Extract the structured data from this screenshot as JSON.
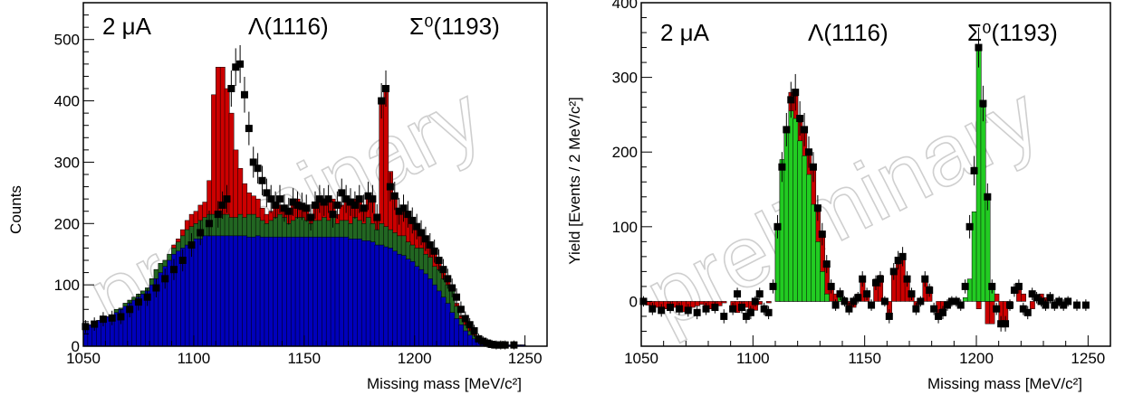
{
  "chart_data": [
    {
      "type": "histogram",
      "xlabel": "Missing mass  [MeV/c²]",
      "ylabel": "Counts",
      "xlim": [
        1050,
        1260
      ],
      "ylim": [
        0,
        560
      ],
      "xticks": [
        1050,
        1100,
        1150,
        1200,
        1250
      ],
      "yticks": [
        0,
        100,
        200,
        300,
        400,
        500
      ],
      "annotations": [
        "2 μA",
        "Λ(1116)",
        "Σ⁰(1193)"
      ],
      "watermark": "preliminary",
      "x": [
        1050,
        1052,
        1054,
        1056,
        1058,
        1060,
        1062,
        1064,
        1066,
        1068,
        1070,
        1072,
        1074,
        1076,
        1078,
        1080,
        1082,
        1084,
        1086,
        1088,
        1090,
        1092,
        1094,
        1096,
        1098,
        1100,
        1102,
        1104,
        1106,
        1108,
        1110,
        1112,
        1114,
        1116,
        1118,
        1120,
        1122,
        1124,
        1126,
        1128,
        1130,
        1132,
        1134,
        1136,
        1138,
        1140,
        1142,
        1144,
        1146,
        1148,
        1150,
        1152,
        1154,
        1156,
        1158,
        1160,
        1162,
        1164,
        1166,
        1168,
        1170,
        1172,
        1174,
        1176,
        1178,
        1180,
        1182,
        1184,
        1186,
        1188,
        1190,
        1192,
        1194,
        1196,
        1198,
        1200,
        1202,
        1204,
        1206,
        1208,
        1210,
        1212,
        1214,
        1216,
        1218,
        1220,
        1222,
        1224,
        1226,
        1228,
        1230,
        1232,
        1234,
        1236,
        1238,
        1240,
        1242,
        1244,
        1246,
        1248
      ],
      "series": [
        {
          "name": "",
          "color": "#cc0000",
          "values": [
            30,
            35,
            38,
            42,
            45,
            48,
            50,
            60,
            62,
            70,
            75,
            80,
            85,
            90,
            95,
            110,
            125,
            135,
            140,
            150,
            165,
            175,
            190,
            205,
            215,
            220,
            230,
            235,
            270,
            410,
            455,
            455,
            420,
            380,
            320,
            290,
            265,
            250,
            245,
            240,
            225,
            215,
            220,
            235,
            230,
            225,
            215,
            230,
            240,
            225,
            220,
            210,
            230,
            245,
            240,
            235,
            240,
            215,
            230,
            235,
            230,
            240,
            235,
            225,
            245,
            240,
            210,
            405,
            420,
            285,
            245,
            220,
            230,
            215,
            200,
            190,
            190,
            180,
            170,
            155,
            140,
            125,
            110,
            100,
            70,
            50,
            40,
            30,
            20,
            10,
            8,
            5,
            3,
            3,
            2,
            2,
            2,
            2,
            2,
            2
          ]
        },
        {
          "name": "",
          "color": "#226622",
          "values": [
            30,
            35,
            38,
            42,
            45,
            48,
            50,
            60,
            62,
            70,
            75,
            80,
            85,
            90,
            95,
            110,
            125,
            135,
            140,
            150,
            160,
            170,
            180,
            190,
            195,
            200,
            205,
            210,
            215,
            215,
            220,
            215,
            215,
            210,
            210,
            215,
            210,
            215,
            215,
            210,
            205,
            200,
            205,
            210,
            215,
            210,
            200,
            205,
            210,
            210,
            205,
            200,
            205,
            205,
            210,
            205,
            210,
            200,
            205,
            205,
            200,
            210,
            205,
            200,
            210,
            200,
            190,
            200,
            195,
            190,
            185,
            180,
            180,
            170,
            165,
            160,
            160,
            150,
            145,
            130,
            125,
            110,
            100,
            90,
            65,
            45,
            35,
            25,
            18,
            8,
            6,
            4,
            3,
            3,
            2,
            2,
            2,
            2,
            2,
            2
          ]
        },
        {
          "name": "",
          "color": "#0000bb",
          "values": [
            30,
            35,
            38,
            42,
            45,
            48,
            50,
            55,
            60,
            65,
            70,
            75,
            80,
            85,
            90,
            100,
            110,
            120,
            130,
            140,
            150,
            155,
            160,
            165,
            170,
            175,
            175,
            180,
            180,
            180,
            180,
            180,
            180,
            180,
            180,
            180,
            180,
            178,
            178,
            180,
            178,
            178,
            178,
            178,
            178,
            178,
            178,
            178,
            178,
            178,
            178,
            178,
            178,
            178,
            178,
            178,
            178,
            178,
            178,
            178,
            175,
            175,
            175,
            172,
            172,
            170,
            165,
            165,
            162,
            160,
            155,
            150,
            148,
            142,
            138,
            130,
            125,
            118,
            110,
            100,
            90,
            80,
            70,
            55,
            45,
            35,
            25,
            18,
            12,
            8,
            5,
            3,
            2,
            2,
            2,
            2,
            2,
            2,
            2,
            2
          ]
        }
      ],
      "data_points": {
        "x": [
          1050,
          1054,
          1058,
          1062,
          1066,
          1070,
          1074,
          1078,
          1082,
          1086,
          1090,
          1094,
          1098,
          1102,
          1106,
          1110,
          1112,
          1114,
          1116,
          1118,
          1120,
          1122,
          1124,
          1126,
          1128,
          1130,
          1132,
          1134,
          1136,
          1138,
          1140,
          1142,
          1144,
          1146,
          1148,
          1150,
          1152,
          1154,
          1156,
          1158,
          1160,
          1162,
          1164,
          1166,
          1168,
          1170,
          1172,
          1174,
          1176,
          1178,
          1180,
          1182,
          1184,
          1186,
          1188,
          1190,
          1192,
          1194,
          1196,
          1198,
          1200,
          1202,
          1204,
          1206,
          1208,
          1210,
          1212,
          1214,
          1216,
          1218,
          1220,
          1222,
          1224,
          1226,
          1228,
          1230,
          1232,
          1234,
          1236,
          1238,
          1240,
          1244
        ],
        "y": [
          32,
          36,
          44,
          46,
          48,
          60,
          72,
          80,
          95,
          110,
          125,
          140,
          165,
          185,
          200,
          215,
          230,
          240,
          420,
          455,
          460,
          410,
          355,
          300,
          290,
          270,
          250,
          240,
          230,
          240,
          225,
          220,
          235,
          230,
          228,
          225,
          210,
          230,
          240,
          235,
          240,
          215,
          230,
          250,
          240,
          235,
          230,
          240,
          225,
          245,
          240,
          210,
          400,
          420,
          260,
          245,
          220,
          225,
          215,
          205,
          195,
          185,
          175,
          165,
          155,
          140,
          125,
          110,
          95,
          80,
          60,
          45,
          35,
          25,
          12,
          8,
          5,
          3,
          2,
          2,
          2,
          2
        ]
      }
    },
    {
      "type": "histogram",
      "xlabel": "Missing mass  [MeV/c²]",
      "ylabel": "Yield  [Events / 2 MeV/c²]",
      "xlim": [
        1050,
        1260
      ],
      "ylim": [
        -60,
        400
      ],
      "xticks": [
        1050,
        1100,
        1150,
        1200,
        1250
      ],
      "yticks": [
        0,
        100,
        200,
        300,
        400
      ],
      "annotations": [
        "2 μA",
        "Λ(1116)",
        "Σ⁰(1193)"
      ],
      "watermark": "preliminary",
      "x": [
        1050,
        1052,
        1054,
        1056,
        1058,
        1060,
        1062,
        1064,
        1066,
        1068,
        1070,
        1072,
        1074,
        1076,
        1078,
        1080,
        1082,
        1084,
        1086,
        1088,
        1090,
        1092,
        1094,
        1096,
        1098,
        1100,
        1102,
        1104,
        1106,
        1108,
        1110,
        1112,
        1114,
        1116,
        1118,
        1120,
        1122,
        1124,
        1126,
        1128,
        1130,
        1132,
        1134,
        1136,
        1138,
        1140,
        1142,
        1144,
        1146,
        1148,
        1150,
        1152,
        1154,
        1156,
        1158,
        1160,
        1162,
        1164,
        1166,
        1168,
        1170,
        1172,
        1174,
        1176,
        1178,
        1180,
        1182,
        1184,
        1186,
        1188,
        1190,
        1192,
        1194,
        1196,
        1198,
        1200,
        1202,
        1204,
        1206,
        1208,
        1210,
        1212,
        1214,
        1216,
        1218,
        1220,
        1222,
        1224,
        1226,
        1228,
        1230,
        1232,
        1234,
        1236,
        1238,
        1240,
        1242,
        1244,
        1246,
        1248
      ],
      "series": [
        {
          "name": "",
          "color": "#cc0000",
          "values": [
            0,
            -5,
            -10,
            -8,
            -12,
            -10,
            -6,
            -8,
            -12,
            -14,
            -10,
            -8,
            -6,
            -4,
            -8,
            -10,
            -4,
            -6,
            -2,
            0,
            -10,
            -15,
            -6,
            -8,
            -10,
            -12,
            -4,
            0,
            -2,
            0,
            100,
            180,
            230,
            280,
            275,
            240,
            230,
            200,
            180,
            120,
            90,
            50,
            20,
            10,
            5,
            0,
            -10,
            -8,
            10,
            30,
            10,
            0,
            30,
            35,
            0,
            -20,
            40,
            50,
            60,
            30,
            10,
            -10,
            0,
            30,
            20,
            0,
            -20,
            -10,
            -5,
            0,
            0,
            0,
            0,
            0,
            0,
            -10,
            20,
            -30,
            -30,
            10,
            -30,
            -30,
            -10,
            0,
            20,
            10,
            0,
            -10,
            0,
            10,
            5,
            0,
            0,
            -5,
            0,
            0,
            0,
            0,
            0,
            0
          ]
        },
        {
          "name": "",
          "color": "#22cc22",
          "values": [
            0,
            0,
            0,
            0,
            0,
            0,
            0,
            0,
            0,
            0,
            0,
            0,
            0,
            0,
            0,
            0,
            0,
            0,
            0,
            0,
            0,
            0,
            0,
            0,
            0,
            0,
            0,
            0,
            0,
            0,
            100,
            190,
            230,
            255,
            245,
            215,
            195,
            170,
            130,
            80,
            40,
            10,
            0,
            0,
            10,
            5,
            0,
            0,
            0,
            0,
            0,
            0,
            0,
            0,
            0,
            0,
            0,
            0,
            0,
            0,
            0,
            0,
            0,
            0,
            0,
            0,
            0,
            0,
            0,
            0,
            0,
            0,
            5,
            30,
            120,
            340,
            260,
            140,
            20,
            0,
            0,
            0,
            0,
            0,
            0,
            0,
            0,
            0,
            0,
            0,
            0,
            0,
            0,
            0,
            0,
            0,
            0,
            0,
            0,
            0
          ]
        }
      ],
      "data_points": {
        "x": [
          1050,
          1054,
          1058,
          1062,
          1066,
          1070,
          1074,
          1078,
          1082,
          1086,
          1090,
          1092,
          1094,
          1096,
          1098,
          1100,
          1102,
          1104,
          1106,
          1108,
          1110,
          1112,
          1114,
          1116,
          1118,
          1120,
          1122,
          1124,
          1126,
          1128,
          1130,
          1132,
          1134,
          1136,
          1138,
          1140,
          1142,
          1144,
          1146,
          1148,
          1150,
          1152,
          1154,
          1156,
          1158,
          1160,
          1162,
          1164,
          1166,
          1168,
          1170,
          1172,
          1174,
          1176,
          1178,
          1180,
          1182,
          1184,
          1186,
          1188,
          1190,
          1192,
          1194,
          1196,
          1198,
          1200,
          1202,
          1204,
          1206,
          1208,
          1210,
          1212,
          1214,
          1216,
          1218,
          1220,
          1222,
          1224,
          1226,
          1228,
          1230,
          1232,
          1234,
          1236,
          1238,
          1240,
          1244,
          1248
        ],
        "y": [
          0,
          -10,
          -12,
          -8,
          -10,
          -12,
          -15,
          -10,
          -8,
          -20,
          -10,
          10,
          -8,
          -20,
          -15,
          0,
          10,
          -10,
          -15,
          20,
          100,
          180,
          230,
          270,
          280,
          245,
          230,
          200,
          180,
          125,
          90,
          50,
          20,
          -5,
          10,
          0,
          -10,
          0,
          5,
          30,
          10,
          -5,
          25,
          30,
          0,
          -20,
          40,
          55,
          60,
          30,
          10,
          -10,
          0,
          30,
          15,
          -10,
          -20,
          -15,
          -5,
          0,
          0,
          -5,
          20,
          100,
          175,
          340,
          265,
          140,
          20,
          -10,
          -30,
          -30,
          -5,
          15,
          20,
          -10,
          -15,
          10,
          5,
          0,
          -5,
          5,
          -5,
          0,
          -5,
          0,
          -5,
          -5
        ]
      }
    }
  ]
}
